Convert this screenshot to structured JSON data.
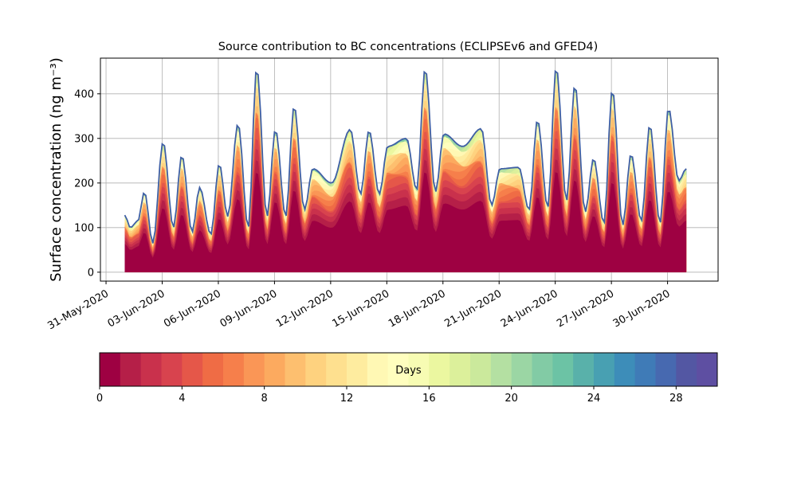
{
  "chart_data": {
    "type": "area",
    "title": "Source contribution to BC concentrations (ECLIPSEv6 and GFED4)",
    "ylabel": "Surface concentration (ng m⁻³)",
    "xlabel": "",
    "x_ticks": [
      "31-May-2020",
      "03-Jun-2020",
      "06-Jun-2020",
      "09-Jun-2020",
      "12-Jun-2020",
      "15-Jun-2020",
      "18-Jun-2020",
      "21-Jun-2020",
      "24-Jun-2020",
      "27-Jun-2020",
      "30-Jun-2020"
    ],
    "y_ticks": [
      0,
      100,
      200,
      300,
      400
    ],
    "ylim": [
      -20,
      480
    ],
    "xlim_days": [
      -0.3,
      32.7
    ],
    "grid": true,
    "stack": {
      "x_start_day": 1.0,
      "x_end_day": 31.0,
      "samples_per_day": 8,
      "total_line_color": "#3f5fa5",
      "approx_total_peaks": [
        {
          "day": 1.0,
          "value": 128
        },
        {
          "day": 1.3,
          "value": 100
        },
        {
          "day": 1.7,
          "value": 115
        },
        {
          "day": 2.05,
          "value": 180
        },
        {
          "day": 2.5,
          "value": 65
        },
        {
          "day": 3.05,
          "value": 292
        },
        {
          "day": 3.6,
          "value": 100
        },
        {
          "day": 4.05,
          "value": 262
        },
        {
          "day": 4.6,
          "value": 90
        },
        {
          "day": 5.0,
          "value": 190
        },
        {
          "day": 5.6,
          "value": 85
        },
        {
          "day": 6.05,
          "value": 243
        },
        {
          "day": 6.5,
          "value": 125
        },
        {
          "day": 7.05,
          "value": 333
        },
        {
          "day": 7.6,
          "value": 100
        },
        {
          "day": 8.05,
          "value": 458
        },
        {
          "day": 8.6,
          "value": 125
        },
        {
          "day": 9.05,
          "value": 320
        },
        {
          "day": 9.6,
          "value": 125
        },
        {
          "day": 10.05,
          "value": 373
        },
        {
          "day": 10.6,
          "value": 140
        },
        {
          "day": 11.05,
          "value": 232
        },
        {
          "day": 12.05,
          "value": 200
        },
        {
          "day": 13.05,
          "value": 320
        },
        {
          "day": 13.6,
          "value": 175
        },
        {
          "day": 14.05,
          "value": 318
        },
        {
          "day": 14.6,
          "value": 175
        },
        {
          "day": 15.05,
          "value": 282
        },
        {
          "day": 16.05,
          "value": 300
        },
        {
          "day": 16.6,
          "value": 185
        },
        {
          "day": 17.05,
          "value": 457
        },
        {
          "day": 17.6,
          "value": 180
        },
        {
          "day": 18.05,
          "value": 310
        },
        {
          "day": 19.05,
          "value": 282
        },
        {
          "day": 20.05,
          "value": 322
        },
        {
          "day": 20.6,
          "value": 150
        },
        {
          "day": 21.05,
          "value": 232
        },
        {
          "day": 22.05,
          "value": 235
        },
        {
          "day": 22.6,
          "value": 140
        },
        {
          "day": 23.05,
          "value": 342
        },
        {
          "day": 23.6,
          "value": 145
        },
        {
          "day": 24.05,
          "value": 460
        },
        {
          "day": 24.6,
          "value": 160
        },
        {
          "day": 25.05,
          "value": 420
        },
        {
          "day": 25.6,
          "value": 135
        },
        {
          "day": 26.05,
          "value": 255
        },
        {
          "day": 26.6,
          "value": 110
        },
        {
          "day": 27.05,
          "value": 410
        },
        {
          "day": 27.6,
          "value": 105
        },
        {
          "day": 28.05,
          "value": 265
        },
        {
          "day": 28.6,
          "value": 115
        },
        {
          "day": 29.05,
          "value": 330
        },
        {
          "day": 29.6,
          "value": 110
        },
        {
          "day": 30.05,
          "value": 368
        },
        {
          "day": 30.6,
          "value": 205
        },
        {
          "day": 31.0,
          "value": 232
        }
      ]
    },
    "colorbar": {
      "label": "Days",
      "ticks": [
        0,
        4,
        8,
        12,
        16,
        20,
        24,
        28
      ],
      "range": [
        0,
        30
      ],
      "colors": [
        "#9e0142",
        "#b51f48",
        "#c9314c",
        "#d8434e",
        "#e55749",
        "#ef6c45",
        "#f67f4b",
        "#fa9656",
        "#fcaa5f",
        "#fdbf6f",
        "#fed27f",
        "#fee08f",
        "#feec9f",
        "#fff8b4",
        "#fffebe",
        "#f7fcb3",
        "#ebf7a0",
        "#dcf09b",
        "#cbe99c",
        "#b4e0a2",
        "#9bd6a4",
        "#82cba5",
        "#6cc3a5",
        "#59b1aa",
        "#48a0b2",
        "#3d8db9",
        "#3f7bb7",
        "#4769b0",
        "#5357a3",
        "#5e4fa2"
      ]
    }
  }
}
